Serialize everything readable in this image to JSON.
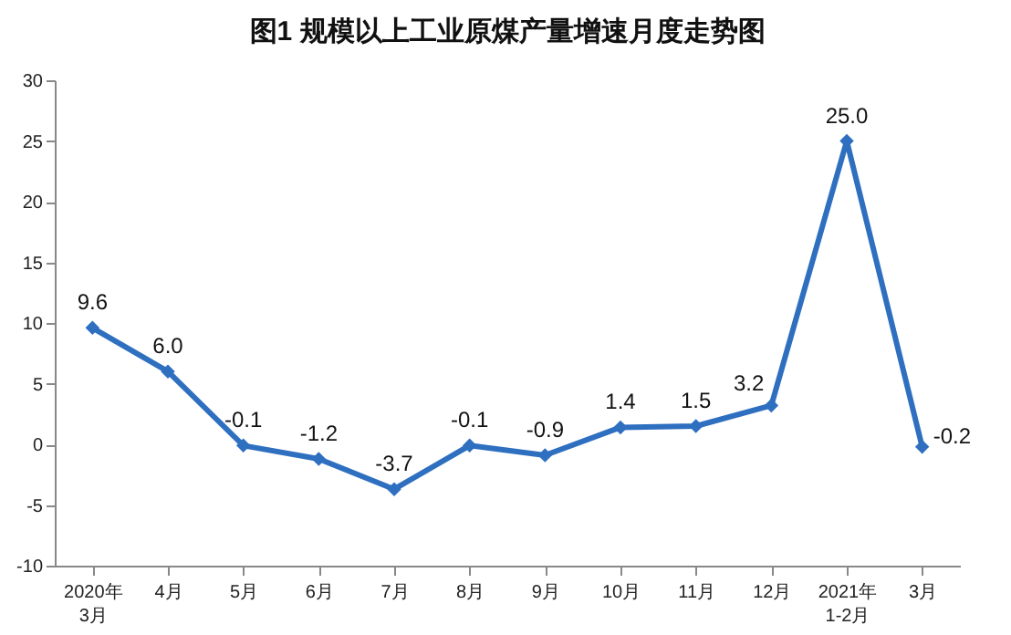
{
  "chart_data": {
    "type": "line",
    "title": "图1  规模以上工业原煤产量增速月度走势图",
    "categories": [
      "2020年\n3月",
      "4月",
      "5月",
      "6月",
      "7月",
      "8月",
      "9月",
      "10月",
      "11月",
      "12月",
      "2021年\n1-2月",
      "3月"
    ],
    "series": [
      {
        "color": "#2e6fc0",
        "values": [
          9.6,
          6.0,
          -0.1,
          -1.2,
          -3.7,
          -0.1,
          -0.9,
          1.4,
          1.5,
          3.2,
          25.0,
          -0.2
        ],
        "value_labels": [
          "9.6",
          "6.0",
          "-0.1",
          "-1.2",
          "-3.7",
          "-0.1",
          "-0.9",
          "1.4",
          "1.5",
          "3.2",
          "25.0",
          "-0.2"
        ]
      }
    ],
    "ylim": [
      -10,
      30
    ],
    "yticks": [
      -10,
      -5,
      0,
      5,
      10,
      15,
      20,
      25,
      30
    ],
    "grid": false,
    "legend": false,
    "marker": "diamond",
    "line_style": "solid"
  }
}
